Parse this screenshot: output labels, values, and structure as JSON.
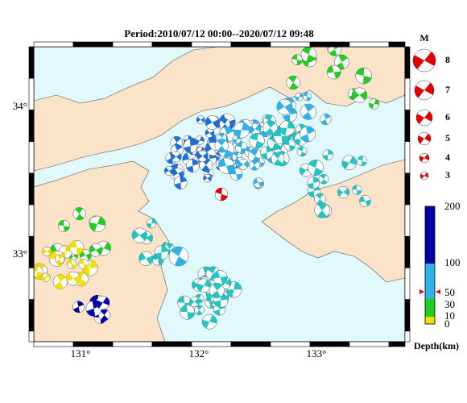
{
  "title": "Period:2010/07/12 00:00--2020/07/12 09:48",
  "map": {
    "lat_labels": [
      "34°",
      "33°"
    ],
    "lon_labels": [
      "131°",
      "132°",
      "133°"
    ]
  },
  "legend": {
    "title": "M",
    "magnitudes": [
      8,
      7,
      6,
      5,
      4,
      3
    ]
  },
  "depth_scale": {
    "labels": [
      200,
      100,
      50,
      30,
      10,
      0
    ],
    "unit": "Depth(km)"
  }
}
